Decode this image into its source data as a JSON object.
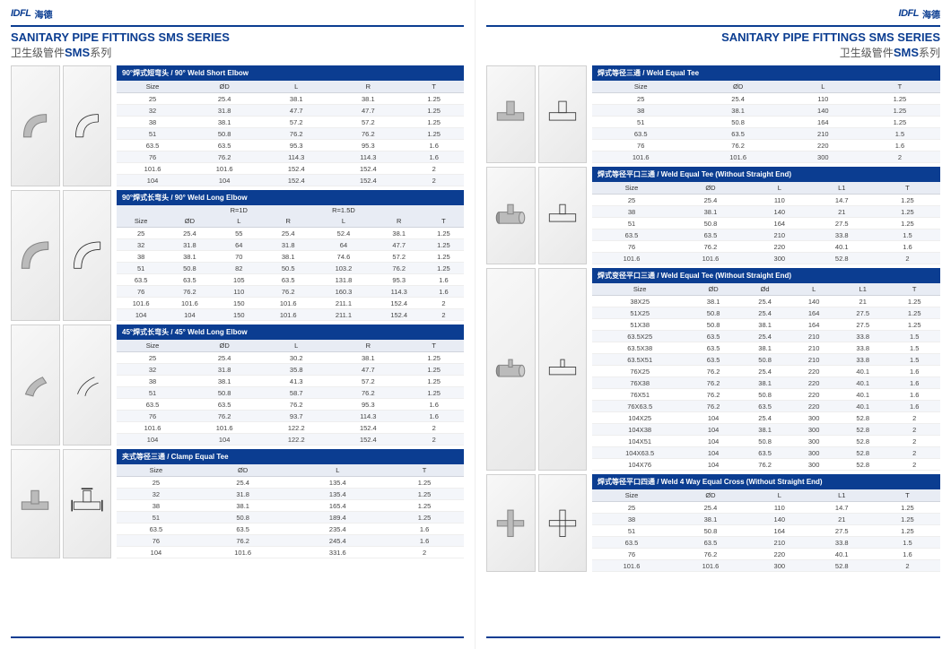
{
  "logo": {
    "mark": "IDFL",
    "cn": "海德"
  },
  "title": {
    "en": "SANITARY PIPE FITTINGS SMS SERIES",
    "cn_prefix": "卫生级管件",
    "cn_sms": "SMS",
    "cn_suffix": "系列"
  },
  "colors": {
    "primary": "#0b3d91",
    "header_bg": "#e8ecf4",
    "row_alt": "#f4f6fa",
    "border": "#d0d0d0"
  },
  "left_tables": [
    {
      "title": "90°焊式短弯头 / 90° Weld Short Elbow",
      "headers": [
        "Size",
        "ØD",
        "L",
        "R",
        "T"
      ],
      "rows": [
        [
          "25",
          "25.4",
          "38.1",
          "38.1",
          "1.25"
        ],
        [
          "32",
          "31.8",
          "47.7",
          "47.7",
          "1.25"
        ],
        [
          "38",
          "38.1",
          "57.2",
          "57.2",
          "1.25"
        ],
        [
          "51",
          "50.8",
          "76.2",
          "76.2",
          "1.25"
        ],
        [
          "63.5",
          "63.5",
          "95.3",
          "95.3",
          "1.6"
        ],
        [
          "76",
          "76.2",
          "114.3",
          "114.3",
          "1.6"
        ],
        [
          "101.6",
          "101.6",
          "152.4",
          "152.4",
          "2"
        ],
        [
          "104",
          "104",
          "152.4",
          "152.4",
          "2"
        ]
      ]
    },
    {
      "title": "90°焊式长弯头 / 90° Weld Long Elbow",
      "super": [
        "",
        "",
        "R=1D",
        "",
        "R=1.5D",
        "",
        ""
      ],
      "headers": [
        "Size",
        "ØD",
        "L",
        "R",
        "L",
        "R",
        "T"
      ],
      "rows": [
        [
          "25",
          "25.4",
          "55",
          "25.4",
          "52.4",
          "38.1",
          "1.25"
        ],
        [
          "32",
          "31.8",
          "64",
          "31.8",
          "64",
          "47.7",
          "1.25"
        ],
        [
          "38",
          "38.1",
          "70",
          "38.1",
          "74.6",
          "57.2",
          "1.25"
        ],
        [
          "51",
          "50.8",
          "82",
          "50.5",
          "103.2",
          "76.2",
          "1.25"
        ],
        [
          "63.5",
          "63.5",
          "105",
          "63.5",
          "131.8",
          "95.3",
          "1.6"
        ],
        [
          "76",
          "76.2",
          "110",
          "76.2",
          "160.3",
          "114.3",
          "1.6"
        ],
        [
          "101.6",
          "101.6",
          "150",
          "101.6",
          "211.1",
          "152.4",
          "2"
        ],
        [
          "104",
          "104",
          "150",
          "101.6",
          "211.1",
          "152.4",
          "2"
        ]
      ]
    },
    {
      "title": "45°焊式长弯头 / 45° Weld Long Elbow",
      "headers": [
        "Size",
        "ØD",
        "L",
        "R",
        "T"
      ],
      "rows": [
        [
          "25",
          "25.4",
          "30.2",
          "38.1",
          "1.25"
        ],
        [
          "32",
          "31.8",
          "35.8",
          "47.7",
          "1.25"
        ],
        [
          "38",
          "38.1",
          "41.3",
          "57.2",
          "1.25"
        ],
        [
          "51",
          "50.8",
          "58.7",
          "76.2",
          "1.25"
        ],
        [
          "63.5",
          "63.5",
          "76.2",
          "95.3",
          "1.6"
        ],
        [
          "76",
          "76.2",
          "93.7",
          "114.3",
          "1.6"
        ],
        [
          "101.6",
          "101.6",
          "122.2",
          "152.4",
          "2"
        ],
        [
          "104",
          "104",
          "122.2",
          "152.4",
          "2"
        ]
      ]
    },
    {
      "title": "夹式等径三通 / Clamp Equal Tee",
      "headers": [
        "Size",
        "ØD",
        "L",
        "T"
      ],
      "rows": [
        [
          "25",
          "25.4",
          "135.4",
          "1.25"
        ],
        [
          "32",
          "31.8",
          "135.4",
          "1.25"
        ],
        [
          "38",
          "38.1",
          "165.4",
          "1.25"
        ],
        [
          "51",
          "50.8",
          "189.4",
          "1.25"
        ],
        [
          "63.5",
          "63.5",
          "235.4",
          "1.6"
        ],
        [
          "76",
          "76.2",
          "245.4",
          "1.6"
        ],
        [
          "104",
          "101.6",
          "331.6",
          "2"
        ]
      ]
    }
  ],
  "right_tables": [
    {
      "title": "焊式等径三通 / Weld Equal Tee",
      "headers": [
        "Size",
        "ØD",
        "L",
        "T"
      ],
      "rows": [
        [
          "25",
          "25.4",
          "110",
          "1.25"
        ],
        [
          "38",
          "38.1",
          "140",
          "1.25"
        ],
        [
          "51",
          "50.8",
          "164",
          "1.25"
        ],
        [
          "63.5",
          "63.5",
          "210",
          "1.5"
        ],
        [
          "76",
          "76.2",
          "220",
          "1.6"
        ],
        [
          "101.6",
          "101.6",
          "300",
          "2"
        ]
      ]
    },
    {
      "title": "焊式等径平口三通 / Weld Equal Tee (Without Straight End)",
      "headers": [
        "Size",
        "ØD",
        "L",
        "L1",
        "T"
      ],
      "rows": [
        [
          "25",
          "25.4",
          "110",
          "14.7",
          "1.25"
        ],
        [
          "38",
          "38.1",
          "140",
          "21",
          "1.25"
        ],
        [
          "51",
          "50.8",
          "164",
          "27.5",
          "1.25"
        ],
        [
          "63.5",
          "63.5",
          "210",
          "33.8",
          "1.5"
        ],
        [
          "76",
          "76.2",
          "220",
          "40.1",
          "1.6"
        ],
        [
          "101.6",
          "101.6",
          "300",
          "52.8",
          "2"
        ]
      ]
    },
    {
      "title": "焊式变径平口三通 / Weld Equal Tee (Without Straight End)",
      "headers": [
        "Size",
        "ØD",
        "Ød",
        "L",
        "L1",
        "T"
      ],
      "rows": [
        [
          "38X25",
          "38.1",
          "25.4",
          "140",
          "21",
          "1.25"
        ],
        [
          "51X25",
          "50.8",
          "25.4",
          "164",
          "27.5",
          "1.25"
        ],
        [
          "51X38",
          "50.8",
          "38.1",
          "164",
          "27.5",
          "1.25"
        ],
        [
          "63.5X25",
          "63.5",
          "25.4",
          "210",
          "33.8",
          "1.5"
        ],
        [
          "63.5X38",
          "63.5",
          "38.1",
          "210",
          "33.8",
          "1.5"
        ],
        [
          "63.5X51",
          "63.5",
          "50.8",
          "210",
          "33.8",
          "1.5"
        ],
        [
          "76X25",
          "76.2",
          "25.4",
          "220",
          "40.1",
          "1.6"
        ],
        [
          "76X38",
          "76.2",
          "38.1",
          "220",
          "40.1",
          "1.6"
        ],
        [
          "76X51",
          "76.2",
          "50.8",
          "220",
          "40.1",
          "1.6"
        ],
        [
          "76X63.5",
          "76.2",
          "63.5",
          "220",
          "40.1",
          "1.6"
        ],
        [
          "104X25",
          "104",
          "25.4",
          "300",
          "52.8",
          "2"
        ],
        [
          "104X38",
          "104",
          "38.1",
          "300",
          "52.8",
          "2"
        ],
        [
          "104X51",
          "104",
          "50.8",
          "300",
          "52.8",
          "2"
        ],
        [
          "104X63.5",
          "104",
          "63.5",
          "300",
          "52.8",
          "2"
        ],
        [
          "104X76",
          "104",
          "76.2",
          "300",
          "52.8",
          "2"
        ]
      ]
    },
    {
      "title": "焊式等径平口四通 / Weld 4 Way Equal Cross (Without Straight End)",
      "headers": [
        "Size",
        "ØD",
        "L",
        "L1",
        "T"
      ],
      "rows": [
        [
          "25",
          "25.4",
          "110",
          "14.7",
          "1.25"
        ],
        [
          "38",
          "38.1",
          "140",
          "21",
          "1.25"
        ],
        [
          "51",
          "50.8",
          "164",
          "27.5",
          "1.25"
        ],
        [
          "63.5",
          "63.5",
          "210",
          "33.8",
          "1.5"
        ],
        [
          "76",
          "76.2",
          "220",
          "40.1",
          "1.6"
        ],
        [
          "101.6",
          "101.6",
          "300",
          "52.8",
          "2"
        ]
      ]
    }
  ]
}
